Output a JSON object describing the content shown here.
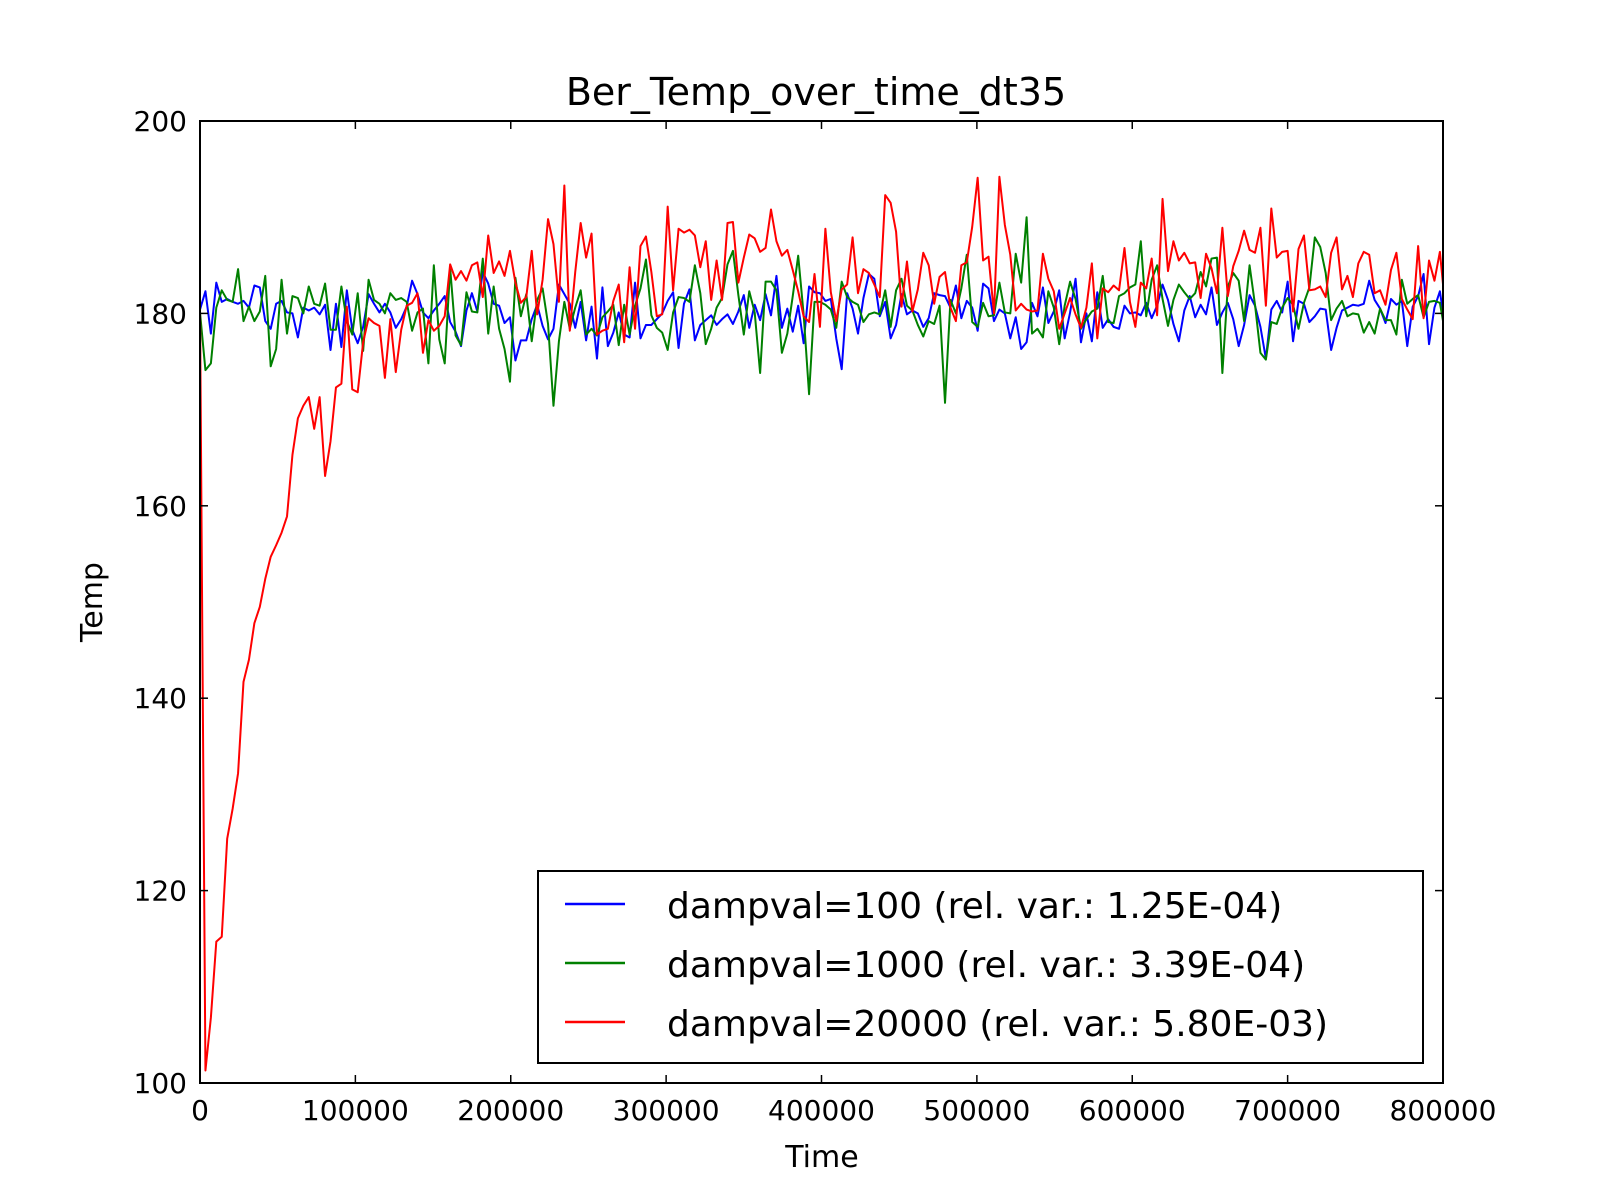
{
  "chart_data": {
    "type": "line",
    "title": "Ber_Temp_over_time_dt35",
    "xlabel": "Time",
    "ylabel": "Temp",
    "xlim": [
      0,
      800000
    ],
    "ylim": [
      100,
      200
    ],
    "xticks": [
      0,
      100000,
      200000,
      300000,
      400000,
      500000,
      600000,
      700000,
      800000
    ],
    "xtick_labels": [
      "0",
      "100000",
      "200000",
      "300000",
      "400000",
      "500000",
      "600000",
      "700000",
      "800000"
    ],
    "yticks": [
      100,
      120,
      140,
      160,
      180,
      200
    ],
    "ytick_labels": [
      "100",
      "120",
      "140",
      "160",
      "180",
      "200"
    ],
    "grid": false,
    "legend_position": "lower-right",
    "x_start": 0,
    "x_step": 3500,
    "series": [
      {
        "name": "dampval=100 (rel. var.: 1.25E-04)",
        "color": "#0000ff",
        "values": [
          180.4,
          182.3,
          177.9,
          183.2,
          181.2,
          181.5,
          181.2,
          181.0,
          181.3,
          180.6,
          182.9,
          182.7,
          179.2,
          178.4,
          181.0,
          181.3,
          180.1,
          180.0,
          177.5,
          180.6,
          180.3,
          180.6,
          179.9,
          180.9,
          176.2,
          181.0,
          176.5,
          182.4,
          178.3,
          176.9,
          178.6,
          182.0,
          181.0,
          180.1,
          181.0,
          180.1,
          178.5,
          179.4,
          180.7,
          183.4,
          182.0,
          180.1,
          179.5,
          180.3,
          181.0,
          181.8,
          179.1,
          178.1,
          176.6,
          180.3,
          182.1,
          180.2,
          184.3,
          183.1,
          181.0,
          180.8,
          179.0,
          179.6,
          175.1,
          177.2,
          177.2,
          179.4,
          180.9,
          178.7,
          177.3,
          178.4,
          183.0,
          182.0,
          181.0,
          178.5,
          181.2,
          177.2,
          180.7,
          175.3,
          182.7,
          176.6,
          178.0,
          180.1,
          177.8,
          177.5,
          183.2,
          177.4,
          178.8,
          178.8,
          179.4,
          180.0,
          181.3,
          182.2,
          176.4,
          181.0,
          182.5,
          177.2,
          178.8,
          179.3,
          179.8,
          178.8,
          179.4,
          179.9,
          178.9,
          180.2,
          181.9,
          178.5,
          180.9,
          179.3,
          182.0,
          179.8,
          183.9,
          178.5,
          180.5,
          178.1,
          180.8,
          176.9,
          182.8,
          182.2,
          182.1,
          181.3,
          181.5,
          177.4,
          174.2,
          182.1,
          180.5,
          177.9,
          181.6,
          184.1,
          183.6,
          179.7,
          181.2,
          177.4,
          178.8,
          182.0,
          179.9,
          180.3,
          180.0,
          178.6,
          179.5,
          182.1,
          181.9,
          181.8,
          180.6,
          182.9,
          179.5,
          181.3,
          180.6,
          178.2,
          183.1,
          182.6,
          179.2,
          180.4,
          180.0,
          177.4,
          179.6,
          176.3,
          177.0,
          181.1,
          179.7,
          182.7,
          179.0,
          180.2,
          182.4,
          177.4,
          180.1,
          183.6,
          177.0,
          180.0,
          177.1,
          182.2,
          178.5,
          179.4,
          178.6,
          178.4,
          180.8,
          180.0,
          180.1,
          179.8,
          181.1,
          179.5,
          180.8,
          183.0,
          181.4,
          178.9,
          177.1,
          180.3,
          181.8,
          179.6,
          180.9,
          179.9,
          182.7,
          178.8,
          180.1,
          181.1,
          179.4,
          176.6,
          178.8,
          181.9,
          180.8,
          178.6,
          175.3,
          180.4,
          181.3,
          180.1,
          183.3,
          177.1,
          181.3,
          181.0,
          179.1,
          179.7,
          180.5,
          180.4,
          176.2,
          178.5,
          180.3,
          180.6,
          180.9,
          180.8,
          181.0,
          183.4,
          181.4,
          180.5,
          179.0,
          181.5,
          180.9,
          181.3,
          176.6,
          180.7,
          181.8,
          184.1,
          176.8,
          180.6,
          182.3,
          178.4,
          181.6,
          178.9,
          179.4,
          178.1,
          180.5,
          177.4,
          182.2,
          180.2,
          181.0,
          180.3,
          180.4,
          179.2,
          181.8,
          180.2,
          179.0,
          180.0,
          177.1,
          181.4,
          179.1,
          179.0,
          178.2,
          176.2,
          183.2,
          179.3,
          179.3,
          180.8,
          180.3,
          178.1,
          180.6,
          178.3,
          180.5,
          182.4,
          179.5,
          182.3,
          181.2,
          178.4,
          178.0,
          177.6,
          183.5,
          181.1,
          178.9,
          182.3,
          182.1,
          180.1,
          179.0,
          183.1,
          176.2,
          178.7,
          176.9,
          183.0,
          180.5,
          181.1
        ],
        "variance": 0.000125
      },
      {
        "name": "dampval=1000 (rel. var.: 3.39E-04)",
        "color": "#008000",
        "values": [
          180.1,
          174.1,
          174.8,
          180.6,
          182.4,
          181.4,
          181.2,
          184.6,
          179.2,
          180.7,
          179.2,
          180.2,
          183.9,
          174.5,
          176.3,
          183.5,
          177.9,
          181.8,
          181.6,
          180.0,
          182.8,
          181.0,
          180.8,
          183.1,
          178.3,
          178.3,
          182.8,
          179.2,
          177.8,
          182.1,
          176.1,
          183.5,
          181.4,
          181.0,
          180.0,
          182.1,
          181.4,
          181.6,
          181.2,
          178.2,
          180.1,
          180.5,
          174.8,
          185.0,
          177.3,
          174.8,
          184.7,
          177.7,
          176.7,
          182.2,
          180.2,
          180.1,
          185.7,
          177.9,
          182.8,
          178.4,
          176.3,
          172.9,
          183.7,
          179.7,
          182.0,
          177.1,
          181.4,
          182.6,
          178.9,
          170.4,
          177.1,
          181.2,
          178.4,
          180.6,
          182.4,
          177.8,
          178.4,
          177.7,
          179.6,
          180.2,
          180.9,
          176.7,
          180.9,
          177.8,
          180.8,
          182.6,
          185.6,
          179.8,
          178.5,
          178.0,
          176.2,
          180.1,
          181.7,
          181.6,
          181.2,
          185.0,
          182.1,
          176.8,
          178.4,
          180.6,
          181.6,
          185.1,
          186.5,
          181.9,
          177.8,
          182.3,
          180.1,
          173.8,
          183.3,
          183.3,
          182.4,
          175.9,
          177.9,
          181.8,
          186.0,
          179.9,
          171.6,
          181.2,
          181.2,
          180.9,
          180.4,
          178.5,
          183.3,
          181.7,
          181.2,
          180.9,
          179.1,
          179.9,
          180.1,
          179.9,
          182.4,
          178.6,
          182.4,
          183.6,
          180.8,
          180.3,
          178.8,
          177.6,
          179.2,
          178.9,
          180.8,
          170.7,
          181.4,
          180.0,
          182.6,
          186.1,
          179.1,
          178.6,
          181.1,
          179.7,
          179.8,
          183.2,
          180.1,
          180.0,
          186.2,
          183.2,
          190.0,
          177.9,
          178.4,
          177.5,
          182.3,
          180.6,
          176.8,
          180.8,
          183.3,
          181.5,
          178.4,
          179.4,
          180.2,
          180.5,
          183.9,
          179.1,
          179.0,
          181.8,
          182.1,
          182.7,
          183.0,
          187.5,
          179.7,
          183.5,
          185.0,
          181.5,
          178.7,
          181.4,
          183.0,
          182.2,
          181.5,
          182.1,
          184.3,
          182.8,
          185.7,
          185.8,
          173.8,
          182.8,
          184.2,
          183.4,
          179.2,
          185.0,
          180.9,
          175.9,
          175.2,
          179.1,
          178.9,
          180.6,
          181.6,
          180.9,
          178.4,
          181.1,
          182.7,
          187.9,
          186.9,
          184.2,
          179.3,
          180.5,
          181.3,
          179.7,
          180.0,
          179.9,
          178.0,
          179.1,
          177.9,
          180.5,
          179.3,
          179.3,
          177.8,
          183.5,
          181.0,
          181.5,
          181.9,
          179.6,
          181.2,
          181.3,
          181.1,
          177.8,
          174.2,
          182.4,
          178.9,
          182.5,
          179.9,
          178.3,
          178.5,
          180.2,
          182.5,
          183.9,
          184.9,
          176.6,
          178.8,
          181.9,
          180.5,
          180.5,
          174.0,
          178.7,
          179.7,
          183.2,
          180.6,
          181.6,
          183.7,
          180.4,
          175.7,
          174.8,
          180.6,
          184.4,
          175.8,
          177.6,
          178.2,
          180.8,
          176.6,
          173.4,
          173.8,
          180.7,
          178.5,
          175.0,
          175.0,
          183.8,
          180.0,
          180.1,
          174.7
        ],
        "variance": 0.000339
      },
      {
        "name": "dampval=20000 (rel. var.: 5.80E-03)",
        "color": "#ff0000",
        "values": [
          180.6,
          101.3,
          106.8,
          114.7,
          115.2,
          125.4,
          128.5,
          132.2,
          141.7,
          144.0,
          147.8,
          149.5,
          152.4,
          154.7,
          155.9,
          157.2,
          158.9,
          165.3,
          169.1,
          170.4,
          171.3,
          168.0,
          171.3,
          163.1,
          166.7,
          172.3,
          172.7,
          180.7,
          172.1,
          171.8,
          177.0,
          179.5,
          179.0,
          178.7,
          173.3,
          179.4,
          173.9,
          178.3,
          180.8,
          181.1,
          182.1,
          175.9,
          179.3,
          178.2,
          178.7,
          179.7,
          185.1,
          183.5,
          184.4,
          183.4,
          185.0,
          185.3,
          181.7,
          188.1,
          184.2,
          185.4,
          183.9,
          186.5,
          183.2,
          181.1,
          181.7,
          186.5,
          179.9,
          183.5,
          189.8,
          187.2,
          181.2,
          193.3,
          178.2,
          184.3,
          189.4,
          185.8,
          188.3,
          177.8,
          178.2,
          178.4,
          181.3,
          183.0,
          177.0,
          184.8,
          178.4,
          187.0,
          188.0,
          184.3,
          179.7,
          179.9,
          191.1,
          182.4,
          188.8,
          188.4,
          188.7,
          188.1,
          184.8,
          187.5,
          181.4,
          185.5,
          181.4,
          189.4,
          189.5,
          183.2,
          185.8,
          188.2,
          187.8,
          186.4,
          186.8,
          190.8,
          187.5,
          186.0,
          186.6,
          184.5,
          182.3,
          179.7,
          179.1,
          184.1,
          178.6,
          188.8,
          182.2,
          179.2,
          182.5,
          183.0,
          187.9,
          182.1,
          184.6,
          184.2,
          183.0,
          181.7,
          192.3,
          191.5,
          188.5,
          180.7,
          185.4,
          180.2,
          182.5,
          186.3,
          185.0,
          181.0,
          183.8,
          184.3,
          180.6,
          179.2,
          185.0,
          185.3,
          189.0,
          194.1,
          185.5,
          185.9,
          180.0,
          194.2,
          189.2,
          186.1,
          180.3,
          181.0,
          180.4,
          180.2,
          180.3,
          186.2,
          183.6,
          182.3,
          178.4,
          180.0,
          181.6,
          179.9,
          178.5,
          180.6,
          185.2,
          177.4,
          182.6,
          182.2,
          182.9,
          182.4,
          186.8,
          181.2,
          178.6,
          183.2,
          182.6,
          185.7,
          179.8,
          191.9,
          184.4,
          187.5,
          185.5,
          186.3,
          185.2,
          185.3,
          181.6,
          186.2,
          184.7,
          182.1,
          188.9,
          181.8,
          184.9,
          186.5,
          188.6,
          186.6,
          186.3,
          188.9,
          180.8,
          190.9,
          185.8,
          186.4,
          186.5,
          180.2,
          186.7,
          188.1,
          182.4,
          182.5,
          182.8,
          181.7,
          186.3,
          187.9,
          182.5,
          183.9,
          181.7,
          185.2,
          186.4,
          186.1,
          182.1,
          182.4,
          180.9,
          184.5,
          186.3,
          181.5,
          180.4,
          179.4,
          187.0,
          179.5,
          185.5,
          183.4,
          186.4,
          180.5,
          182.0,
          185.0,
          185.3,
          179.8,
          185.9,
          185.5,
          181.2,
          178.2,
          184.4,
          184.8,
          182.0,
          188.4,
          184.5,
          177.4,
          179.0,
          180.5,
          187.4,
          182.4,
          186.4,
          178.4,
          184.0,
          184.3,
          186.4,
          184.8,
          186.8,
          181.8,
          186.3,
          185.9,
          181.9,
          182.7,
          186.9,
          187.2,
          181.8,
          183.8,
          180.3,
          185.3,
          186.1,
          181.5,
          184.0,
          185.1,
          180.9,
          187.0,
          181.4,
          183.2
        ],
        "variance": 0.0058
      }
    ]
  }
}
